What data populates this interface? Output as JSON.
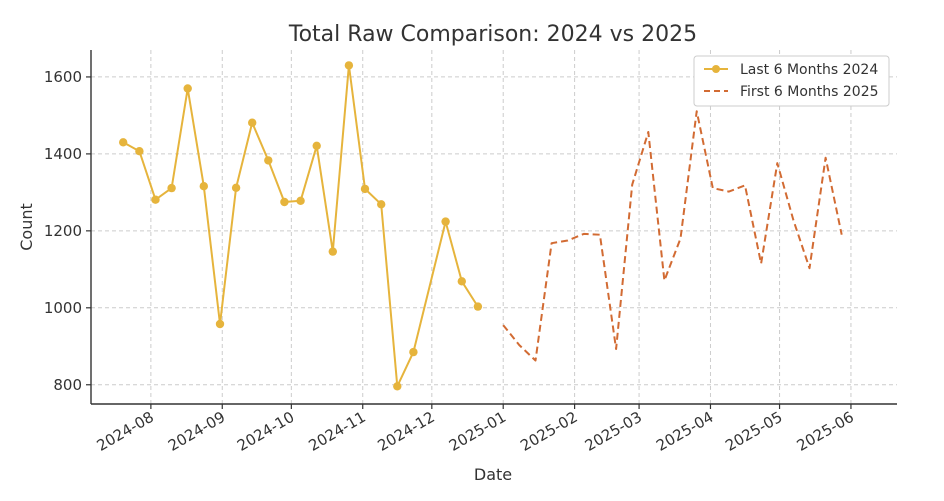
{
  "chart_data": {
    "type": "line",
    "title": "Total Raw Comparison: 2024 vs 2025",
    "xlabel": "Date",
    "ylabel": "Count",
    "xlim": [
      "2024-07-06",
      "2025-06-21"
    ],
    "ylim": [
      750,
      1670
    ],
    "y_ticks": [
      800,
      1000,
      1200,
      1400,
      1600
    ],
    "x_ticks": [
      "2024-08-01",
      "2024-09-01",
      "2024-10-01",
      "2024-11-01",
      "2024-12-01",
      "2025-01-01",
      "2025-02-01",
      "2025-03-01",
      "2025-04-01",
      "2025-05-01",
      "2025-06-01"
    ],
    "x_tick_labels": [
      "2024-08",
      "2024-09",
      "2024-10",
      "2024-11",
      "2024-12",
      "2025-01",
      "2025-02",
      "2025-03",
      "2025-04",
      "2025-05",
      "2025-06"
    ],
    "grid": true,
    "legend_position": "top-right",
    "series": [
      {
        "name": "Last 6 Months 2024",
        "style": "solid-marker",
        "color": "#E6B43C",
        "x": [
          "2024-07-20",
          "2024-07-27",
          "2024-08-03",
          "2024-08-10",
          "2024-08-17",
          "2024-08-24",
          "2024-08-31",
          "2024-09-07",
          "2024-09-14",
          "2024-09-21",
          "2024-09-28",
          "2024-10-05",
          "2024-10-12",
          "2024-10-19",
          "2024-10-26",
          "2024-11-02",
          "2024-11-09",
          "2024-11-16",
          "2024-11-23",
          "2024-12-07",
          "2024-12-14",
          "2024-12-21"
        ],
        "y": [
          1430,
          1407,
          1281,
          1311,
          1570,
          1316,
          958,
          1312,
          1481,
          1383,
          1275,
          1278,
          1421,
          1146,
          1630,
          1309,
          1269,
          796,
          885,
          1224,
          1069,
          1003
        ]
      },
      {
        "name": "First 6 Months 2025",
        "style": "dashed",
        "color": "#D26B33",
        "x": [
          "2025-01-01",
          "2025-01-08",
          "2025-01-15",
          "2025-01-22",
          "2025-01-29",
          "2025-02-05",
          "2025-02-12",
          "2025-02-19",
          "2025-02-26",
          "2025-03-05",
          "2025-03-12",
          "2025-03-19",
          "2025-03-26",
          "2025-04-02",
          "2025-04-09",
          "2025-04-16",
          "2025-04-23",
          "2025-04-30",
          "2025-05-07",
          "2025-05-14",
          "2025-05-21",
          "2025-05-28"
        ],
        "y": [
          955,
          903,
          863,
          1168,
          1175,
          1192,
          1190,
          893,
          1320,
          1457,
          1071,
          1180,
          1511,
          1311,
          1302,
          1318,
          1115,
          1376,
          1228,
          1103,
          1390,
          1190
        ]
      }
    ]
  }
}
